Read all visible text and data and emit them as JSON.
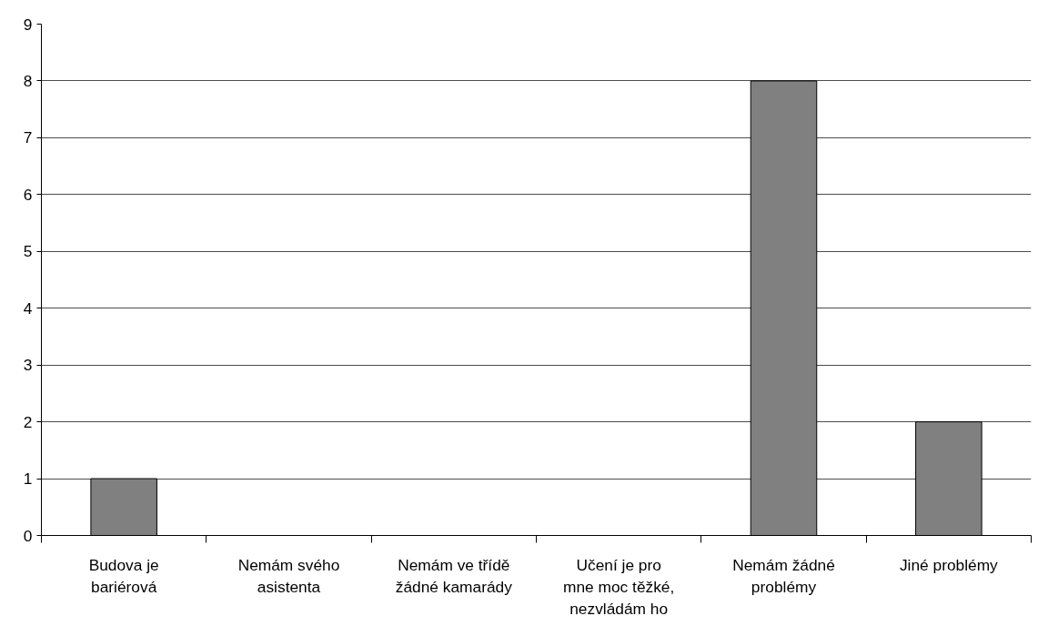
{
  "chart_data": {
    "type": "bar",
    "categories": [
      "Budova je bariérová",
      "Nemám svého asistenta",
      "Nemám ve třídě žádné kamarády",
      "Učení je pro mne moc těžké, nezvládám ho",
      "Nemám žádné problémy",
      "Jiné problémy"
    ],
    "values": [
      1,
      0,
      0,
      0,
      8,
      2
    ],
    "color": "#808080",
    "ylim": [
      0,
      9
    ],
    "yticks": [
      0,
      1,
      2,
      3,
      4,
      5,
      6,
      7,
      8,
      9
    ],
    "grid": "y"
  }
}
